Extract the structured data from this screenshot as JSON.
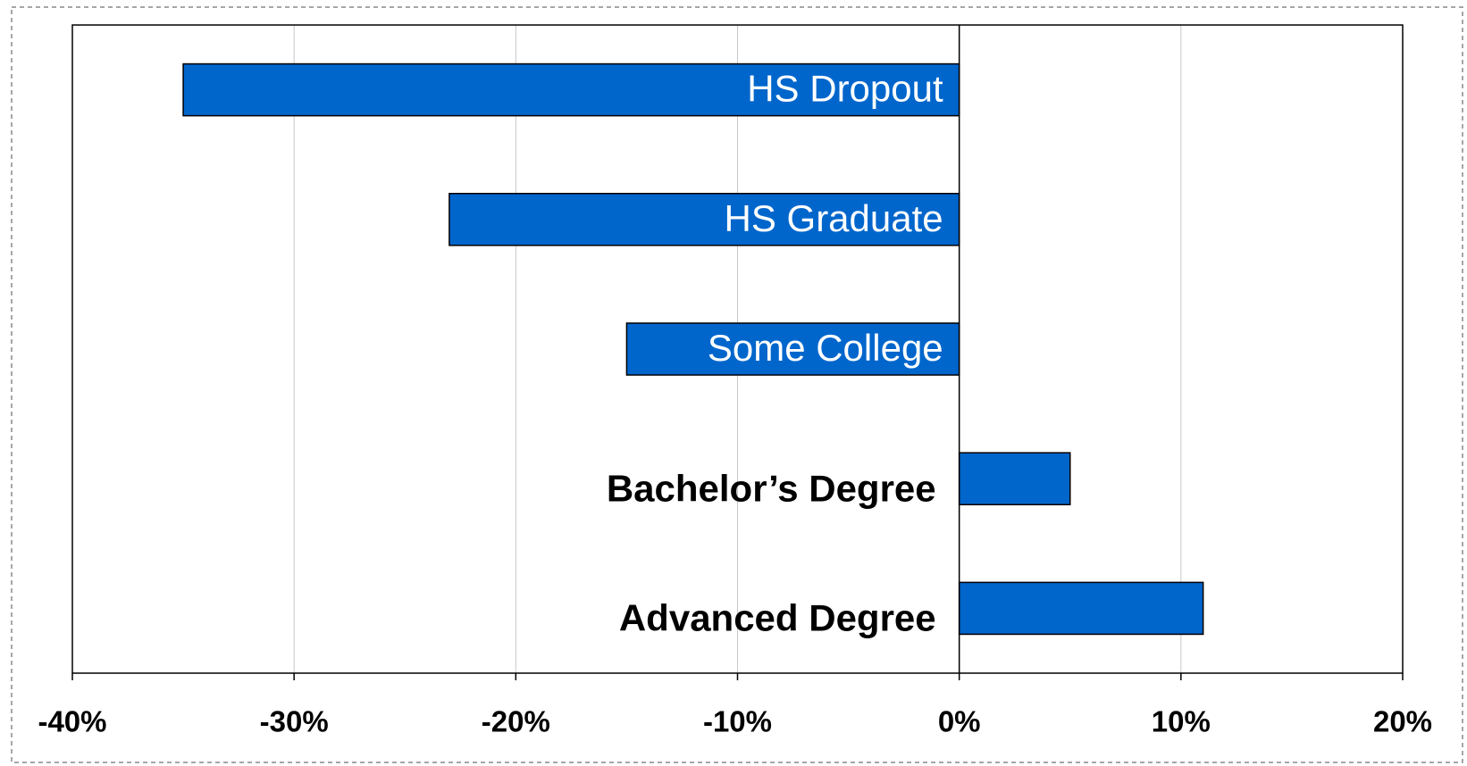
{
  "chart_data": {
    "type": "barh",
    "categories": [
      "HS Dropout",
      "HS Graduate",
      "Some College",
      "Bachelor’s Degree",
      "Advanced Degree"
    ],
    "values": [
      -35,
      -23,
      -15,
      5,
      11
    ],
    "color": "#0066cc",
    "xlim": [
      -40,
      20
    ],
    "xticks": [
      {
        "value": -40,
        "label": "-40%"
      },
      {
        "value": -30,
        "label": "-30%"
      },
      {
        "value": -20,
        "label": "-20%"
      },
      {
        "value": -10,
        "label": "-10%"
      },
      {
        "value": 0,
        "label": "0%"
      },
      {
        "value": 10,
        "label": "10%"
      },
      {
        "value": 20,
        "label": "20%"
      }
    ],
    "grid": true
  }
}
